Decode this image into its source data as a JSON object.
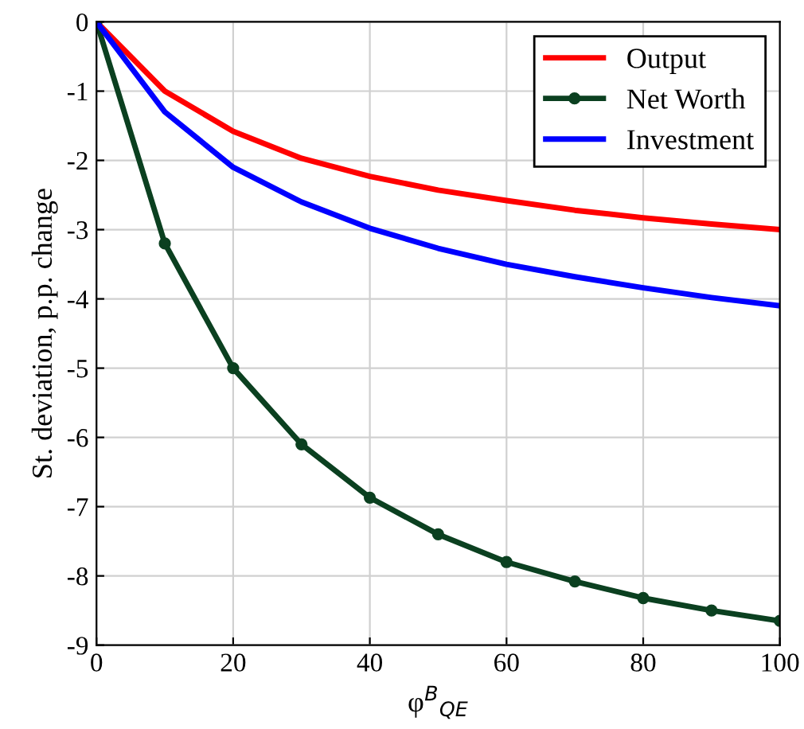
{
  "chart_data": {
    "type": "line",
    "xlabel": "φ$^{B}$$_{QE}$",
    "ylabel": "St. deviation, p.p. change",
    "x": [
      0,
      10,
      20,
      30,
      40,
      50,
      60,
      70,
      80,
      90,
      100
    ],
    "series": [
      {
        "name": "Output",
        "color": "#ff0000",
        "marker": "none",
        "values": [
          0,
          -1.0,
          -1.58,
          -1.97,
          -2.23,
          -2.43,
          -2.58,
          -2.72,
          -2.83,
          -2.92,
          -3.0
        ]
      },
      {
        "name": "Net Worth",
        "color": "#0b4020",
        "marker": "circle",
        "values": [
          0,
          -3.2,
          -5.0,
          -6.1,
          -6.87,
          -7.4,
          -7.8,
          -8.08,
          -8.32,
          -8.5,
          -8.65
        ]
      },
      {
        "name": "Investment",
        "color": "#0000ff",
        "marker": "none",
        "values": [
          0,
          -1.3,
          -2.1,
          -2.6,
          -2.98,
          -3.27,
          -3.5,
          -3.68,
          -3.84,
          -3.98,
          -4.1
        ]
      }
    ],
    "xlim": [
      0,
      100
    ],
    "xticks": [
      0,
      20,
      40,
      60,
      80,
      100
    ],
    "ylim": [
      -9,
      0
    ],
    "yticks": [
      -9,
      -8,
      -7,
      -6,
      -5,
      -4,
      -3,
      -2,
      -1,
      0
    ],
    "grid": true,
    "legend": "top right",
    "line_style": "solid"
  }
}
